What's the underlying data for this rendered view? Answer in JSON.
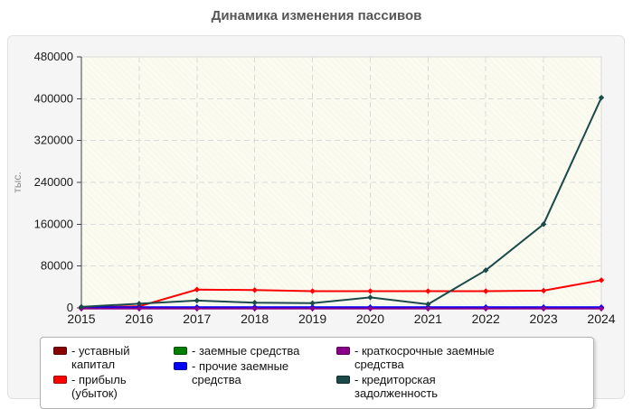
{
  "chart_data": {
    "type": "line",
    "title": "Динамика изменения пассивов",
    "ylabel": "тыс.",
    "categories": [
      "2015",
      "2016",
      "2017",
      "2018",
      "2019",
      "2020",
      "2021",
      "2022",
      "2023",
      "2024"
    ],
    "ylim": [
      0,
      480000
    ],
    "ytick_step": 80000,
    "grid": true,
    "legend_position": "bottom",
    "legend_prefix": "-",
    "series": [
      {
        "name": "уставный капитал",
        "color": "#8b0000",
        "values": [
          0,
          0,
          0,
          0,
          0,
          0,
          0,
          0,
          0,
          0
        ]
      },
      {
        "name": "прибыль (убыток)",
        "color": "#ff0000",
        "values": [
          1000,
          3000,
          35000,
          34000,
          32000,
          32000,
          32000,
          32000,
          33000,
          53000
        ]
      },
      {
        "name": "заемные средства",
        "color": "#008000",
        "values": [
          0,
          0,
          0,
          0,
          0,
          0,
          0,
          0,
          0,
          0
        ]
      },
      {
        "name": "прочие заемные средства",
        "color": "#0000ff",
        "values": [
          0,
          0,
          0,
          0,
          0,
          0,
          0,
          0,
          0,
          0
        ]
      },
      {
        "name": "краткосрочные заемные средства",
        "color": "#8b008b",
        "values": [
          0,
          0,
          0,
          0,
          0,
          0,
          0,
          0,
          0,
          0
        ]
      },
      {
        "name": "кредиторская задолженность",
        "color": "#1b4a4a",
        "values": [
          2000,
          8000,
          14000,
          10000,
          9000,
          20000,
          7000,
          72000,
          160000,
          402000
        ]
      }
    ],
    "colors": {
      "plot_background": "#f9f9ec",
      "hatch": "#ffffff",
      "gridline": "#dcdcdc",
      "axis": "#444444",
      "tick_label": "#1a1a1a",
      "title": "#555555",
      "ylabel": "#8a8a8a"
    }
  }
}
